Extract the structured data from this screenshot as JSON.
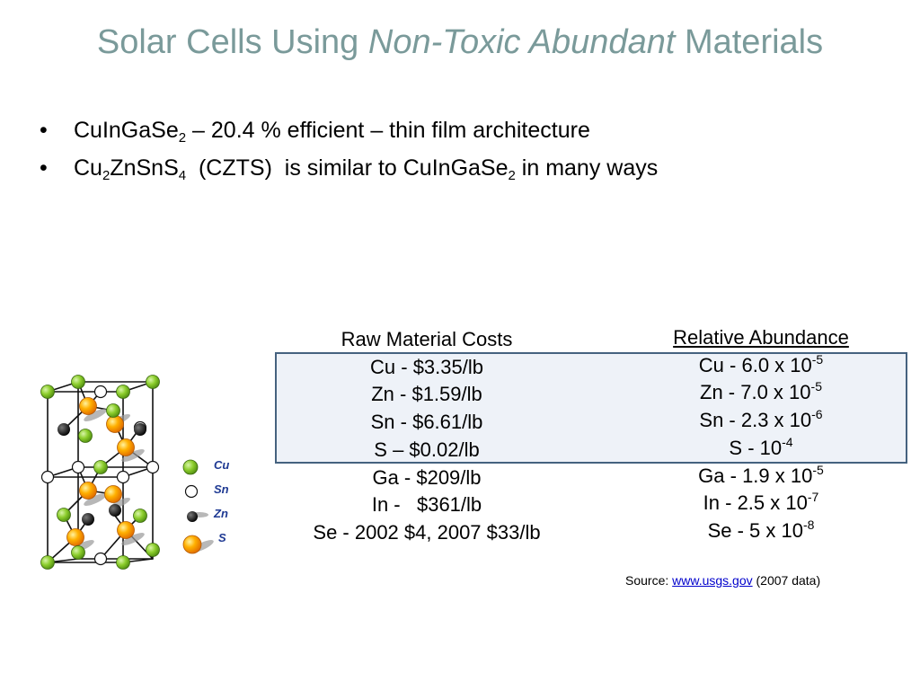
{
  "slide": {
    "title": {
      "prefix": "Solar Cells Using ",
      "emphasis": "Non-Toxic Abundant",
      "suffix": " Materials"
    },
    "bullets": [
      {
        "bullet": "•",
        "parts": [
          "CuInGaSe",
          "2",
          " – 20.4 % efficient – thin film architecture"
        ]
      },
      {
        "bullet": "•",
        "parts": [
          "Cu",
          "2",
          "ZnSnS",
          "4",
          "  (CZTS)  is similar to CuInGaSe",
          "2",
          " in many ways"
        ]
      }
    ],
    "raw_material_costs": {
      "heading": "Raw Material Costs",
      "items": [
        "Cu - $3.35/lb",
        "Zn - $1.59/lb",
        "Sn - $6.61/lb",
        "S – $0.02/lb",
        "Ga - $209/lb",
        "In -   $361/lb",
        "Se - 2002 $4, 2007 $33/lb"
      ]
    },
    "relative_abundance": {
      "heading": "Relative Abundance",
      "items": [
        {
          "base": "Cu - 6.0 x 10",
          "exp": "-5"
        },
        {
          "base": "Zn - 7.0 x 10",
          "exp": "-5"
        },
        {
          "base": "Sn - 2.3 x 10",
          "exp": "-6"
        },
        {
          "base": "S - 10",
          "exp": "-4"
        },
        {
          "base": "Ga - 1.9 x 10",
          "exp": "-5"
        },
        {
          "base": "In - 2.5 x 10",
          "exp": "-7"
        },
        {
          "base": "Se - 5 x 10",
          "exp": "-8"
        }
      ]
    },
    "source": {
      "prefix": "Source: ",
      "link_text": "www.usgs.gov",
      "suffix": " (2007 data)"
    },
    "crystal_legend": {
      "cu": {
        "label": "Cu",
        "color": "#7ac424"
      },
      "sn": {
        "label": "Sn",
        "color": "#ffffff"
      },
      "zn": {
        "label": "Zn",
        "color": "#111111"
      },
      "s": {
        "label": "S",
        "color": "#f7a000"
      }
    },
    "colors": {
      "title": "#7a9a9a",
      "highlight_border": "#45627f",
      "highlight_fill": "#eef2f8",
      "legend_text": "#1f3a93",
      "link": "#0000cc"
    }
  }
}
